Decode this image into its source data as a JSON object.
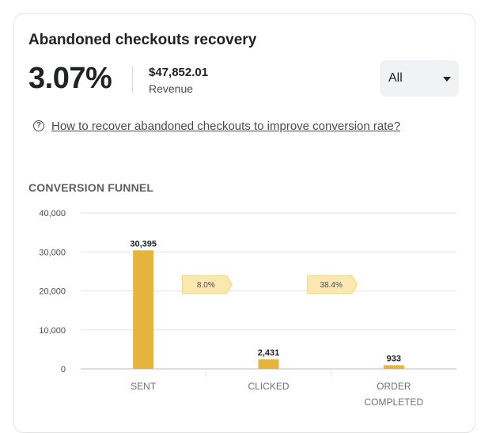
{
  "card": {
    "title": "Abandoned checkouts recovery",
    "recovery_rate": "3.07%",
    "revenue_amount": "$47,852.01",
    "revenue_label": "Revenue",
    "filter": {
      "selected": "All"
    },
    "help_link": "How to recover abandoned checkouts to improve conversion rate?",
    "section_title": "CONVERSION FUNNEL"
  },
  "colors": {
    "bar": "#e6b43c",
    "rate_tag_fill": "#fbe8b0",
    "rate_tag_stroke": "#f0d47e",
    "grid": "#e3e3e3"
  },
  "chart_data": {
    "type": "bar",
    "categories": [
      [
        "SENT"
      ],
      [
        "CLICKED"
      ],
      [
        "ORDER",
        "COMPLETED"
      ]
    ],
    "values": [
      30395,
      2431,
      933
    ],
    "value_labels": [
      "30,395",
      "2,431",
      "933"
    ],
    "ylim": [
      0,
      40000
    ],
    "yticks": [
      0,
      10000,
      20000,
      30000,
      40000
    ],
    "ytick_labels": [
      "0",
      "10,000",
      "20,000",
      "30,000",
      "40,000"
    ],
    "step_rates": [
      "8.0%",
      "38.4%"
    ],
    "grid": true
  }
}
